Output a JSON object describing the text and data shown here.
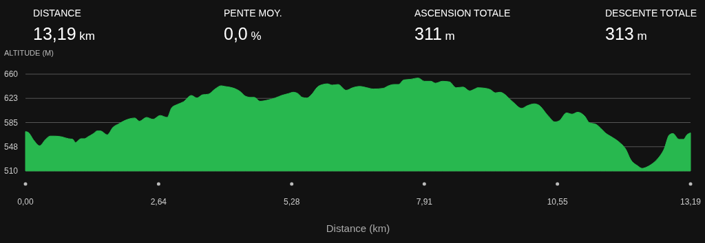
{
  "chart_data": {
    "type": "area",
    "xlabel": "Distance (km)",
    "ylabel": "ALTITUDE (M)",
    "annotations": [
      "DISTANCE",
      "13,19 km",
      "PENTE MOY.",
      "0,0 %",
      "ASCENSION TOTALE",
      "311 m",
      "DESCENTE TOTALE",
      "313 m"
    ],
    "x": [
      0,
      0.05,
      0.17,
      0.28,
      0.4,
      0.49,
      0.58,
      0.71,
      0.85,
      0.94,
      0.99,
      1.1,
      1.17,
      1.24,
      1.35,
      1.42,
      1.49,
      1.62,
      1.74,
      1.85,
      1.94,
      2.03,
      2.17,
      2.26,
      2.4,
      2.53,
      2.67,
      2.81,
      2.9,
      3.01,
      3.13,
      3.29,
      3.4,
      3.51,
      3.63,
      3.76,
      3.88,
      3.95,
      4.04,
      4.17,
      4.26,
      4.36,
      4.47,
      4.54,
      4.65,
      4.81,
      4.95,
      5.08,
      5.22,
      5.31,
      5.4,
      5.49,
      5.58,
      5.67,
      5.79,
      5.9,
      5.99,
      6.08,
      6.2,
      6.36,
      6.49,
      6.63,
      6.77,
      6.9,
      7.09,
      7.2,
      7.31,
      7.4,
      7.5,
      7.63,
      7.79,
      7.91,
      8.04,
      8.13,
      8.27,
      8.41,
      8.54,
      8.68,
      8.81,
      8.91,
      8.97,
      9.13,
      9.22,
      9.32,
      9.41,
      9.5,
      9.61,
      9.68,
      9.84,
      9.95,
      10.09,
      10.18,
      10.36,
      10.5,
      10.59,
      10.73,
      10.84,
      10.95,
      11.09,
      11.18,
      11.32,
      11.41,
      11.5,
      11.64,
      11.77,
      11.91,
      12.0,
      12.14,
      12.23,
      12.32,
      12.41,
      12.55,
      12.66,
      12.77,
      12.84,
      12.96,
      13.05,
      13.12,
      13.19
    ],
    "series": [
      {
        "color": "#28b84f",
        "values": [
          571,
          570,
          557,
          549,
          559,
          564,
          564,
          563,
          560,
          559,
          554,
          560,
          560,
          563,
          568,
          572,
          572,
          566,
          578,
          583,
          587,
          590,
          592,
          587,
          593,
          590,
          596,
          593,
          608,
          613,
          617,
          627,
          623,
          628,
          629,
          637,
          642,
          641,
          640,
          637,
          633,
          626,
          624,
          624,
          618,
          620,
          623,
          627,
          630,
          632,
          630,
          624,
          623,
          628,
          640,
          644,
          645,
          643,
          644,
          635,
          639,
          641,
          639,
          637,
          638,
          642,
          644,
          644,
          651,
          652,
          654,
          649,
          649,
          646,
          649,
          648,
          639,
          640,
          634,
          637,
          639,
          638,
          636,
          631,
          632,
          629,
          621,
          616,
          607,
          611,
          614,
          612,
          596,
          586,
          588,
          600,
          598,
          601,
          595,
          585,
          582,
          576,
          569,
          562,
          555,
          543,
          528,
          518,
          514,
          516,
          520,
          530,
          543,
          566,
          568,
          559,
          559,
          566,
          569
        ]
      }
    ],
    "xlim": [
      0,
      13.19
    ],
    "ylim": [
      510,
      660
    ],
    "xticks": [
      {
        "value": 0,
        "label": "0,00"
      },
      {
        "value": 2.64,
        "label": "2,64"
      },
      {
        "value": 5.28,
        "label": "5,28"
      },
      {
        "value": 7.91,
        "label": "7,91"
      },
      {
        "value": 10.55,
        "label": "10,55"
      },
      {
        "value": 13.19,
        "label": "13,19"
      }
    ],
    "yticks": [
      510,
      {
        "value": 547.5,
        "label": "548"
      },
      585,
      {
        "value": 622.5,
        "label": "623"
      },
      660
    ],
    "grid": "y"
  }
}
